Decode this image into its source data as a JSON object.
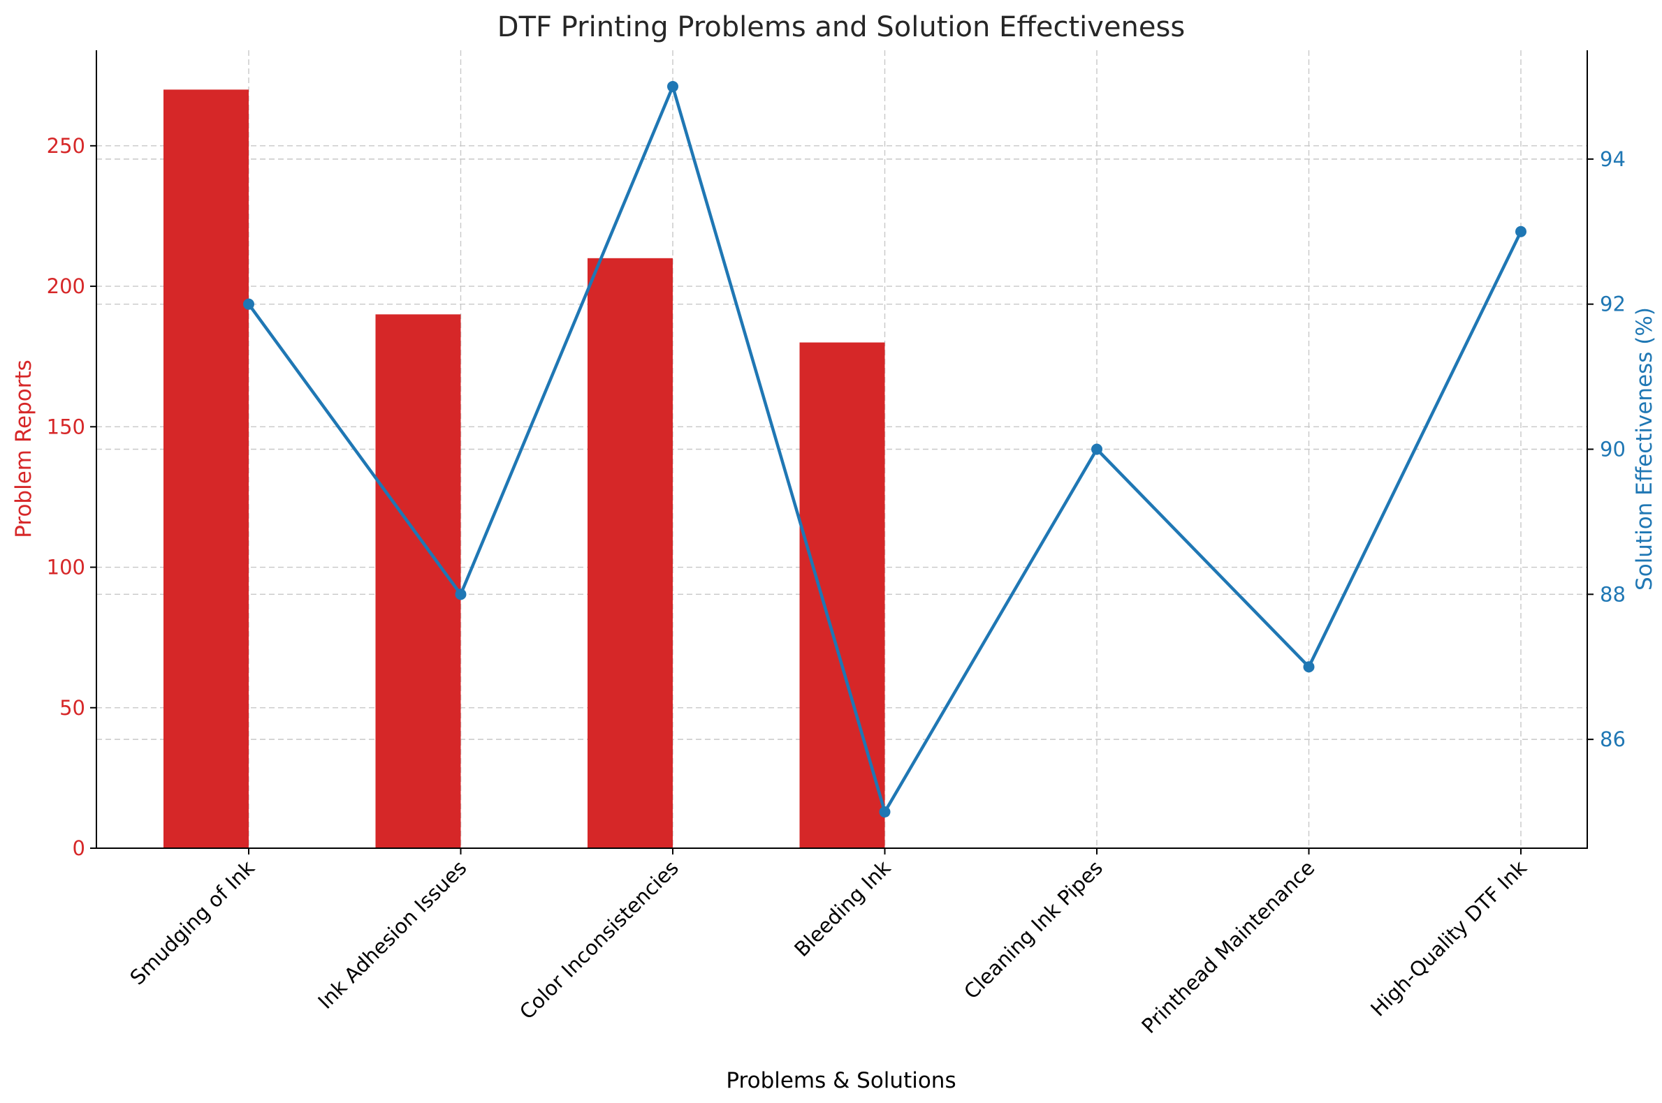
{
  "chart_data": {
    "type": "bar+line",
    "title": "DTF Printing Problems and Solution Effectiveness",
    "xlabel": "Problems & Solutions",
    "ylabel_left": "Problem Reports",
    "ylabel_right": "Solution Effectiveness (%)",
    "categories": [
      "Smudging of Ink",
      "Ink Adhesion Issues",
      "Color Inconsistencies",
      "Bleeding Ink",
      "Cleaning Ink Pipes",
      "Printhead Maintenance",
      "High-Quality DTF Ink"
    ],
    "series": [
      {
        "name": "Problem Reports",
        "type": "bar",
        "axis": "left",
        "color": "#d62728",
        "values": [
          270,
          190,
          210,
          180,
          null,
          null,
          null
        ]
      },
      {
        "name": "Solution Effectiveness (%)",
        "type": "line",
        "axis": "right",
        "color": "#1f77b4",
        "values": [
          92,
          88,
          95,
          85,
          90,
          87,
          93
        ]
      }
    ],
    "ylim_left": [
      0,
      284
    ],
    "yticks_left": [
      0,
      50,
      100,
      150,
      200,
      250
    ],
    "ylim_right": [
      84.5,
      95.5
    ],
    "yticks_right": [
      86,
      88,
      90,
      92,
      94
    ],
    "grid": true,
    "left_axis_color": "#d62728",
    "right_axis_color": "#1f77b4"
  }
}
